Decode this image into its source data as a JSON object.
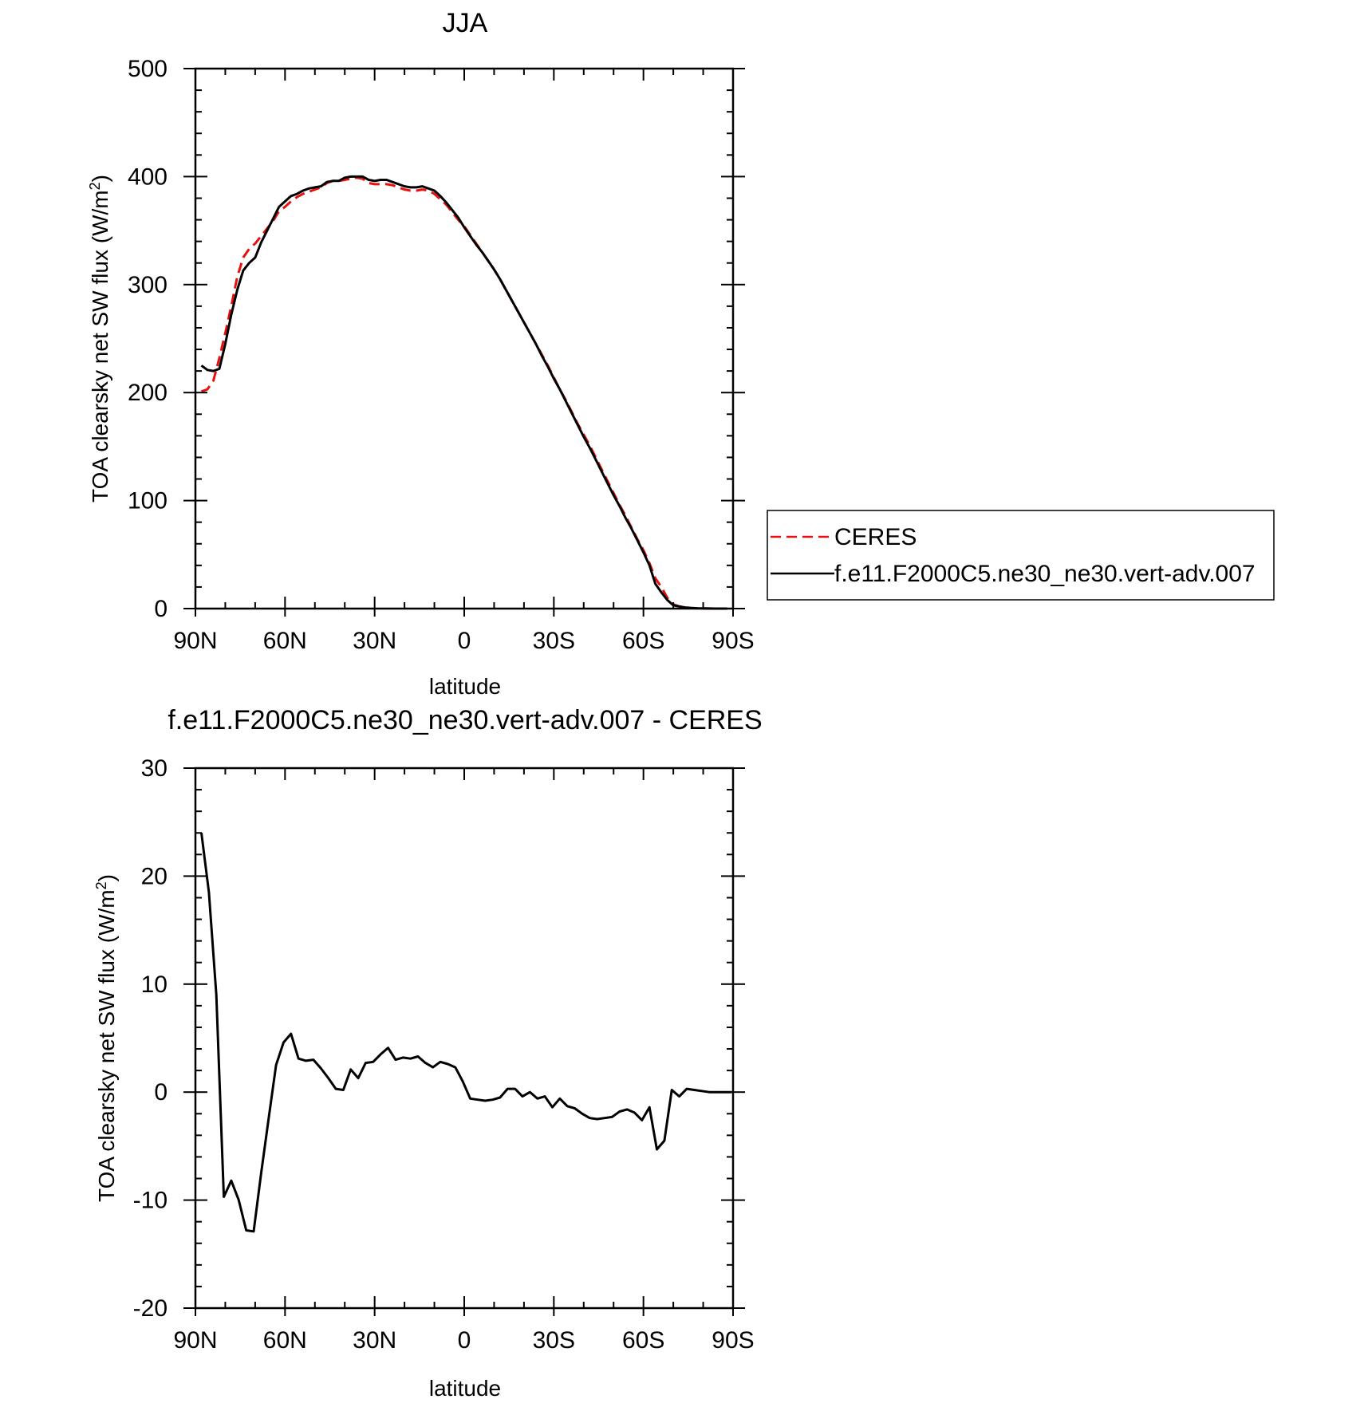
{
  "chart_data": [
    {
      "type": "line",
      "title": "JJA",
      "xlabel": "latitude",
      "ylabel": "TOA clearsky net SW flux (W/m²)",
      "ylabel_main": "TOA clearsky net SW flux (W/m",
      "ylabel_sup": "2",
      "ylabel_tail": ")",
      "xlim": [
        90,
        -90
      ],
      "ylim": [
        0,
        500
      ],
      "xticks": [
        {
          "value": 90,
          "label": "90N"
        },
        {
          "value": 60,
          "label": "60N"
        },
        {
          "value": 30,
          "label": "30N"
        },
        {
          "value": 0,
          "label": "0"
        },
        {
          "value": -30,
          "label": "30S"
        },
        {
          "value": -60,
          "label": "60S"
        },
        {
          "value": -90,
          "label": "90S"
        }
      ],
      "yticks": [
        {
          "value": 0,
          "label": "0"
        },
        {
          "value": 100,
          "label": "100"
        },
        {
          "value": 200,
          "label": "200"
        },
        {
          "value": 300,
          "label": "300"
        },
        {
          "value": 400,
          "label": "400"
        },
        {
          "value": 500,
          "label": "500"
        }
      ],
      "legend_position": "right",
      "series": [
        {
          "name": "CERES",
          "color": "#e8100f",
          "dash": true,
          "x": [
            88,
            86,
            84,
            82,
            80,
            78,
            76,
            74,
            72,
            70,
            68,
            66,
            64,
            62,
            60,
            58,
            56,
            54,
            52,
            50,
            48,
            46,
            44,
            42,
            40,
            38,
            36,
            34,
            32,
            30,
            28,
            26,
            24,
            22,
            20,
            18,
            16,
            14,
            12,
            10,
            8,
            6,
            4,
            2,
            0,
            -2,
            -4,
            -6,
            -8,
            -10,
            -12,
            -14,
            -16,
            -18,
            -20,
            -22,
            -24,
            -26,
            -28,
            -30,
            -32,
            -34,
            -36,
            -38,
            -40,
            -42,
            -44,
            -46,
            -48,
            -50,
            -52,
            -54,
            -56,
            -58,
            -60,
            -62,
            -64,
            -66,
            -68,
            -70,
            -72,
            -74,
            -76,
            -78,
            -80,
            -82,
            -84,
            -86,
            -88
          ],
          "values": [
            201,
            203,
            211,
            232,
            255,
            280,
            307,
            325,
            333,
            338,
            345,
            352,
            359,
            368,
            372,
            377,
            381,
            384,
            386,
            388,
            390,
            394,
            396,
            396,
            397,
            398,
            399,
            398,
            394,
            393,
            393,
            393,
            392,
            390,
            388,
            387,
            387,
            388,
            387,
            384,
            379,
            374,
            367,
            360,
            354,
            346,
            338,
            330,
            322,
            314,
            305,
            295,
            285,
            275,
            265,
            255,
            245,
            235,
            225,
            214,
            203,
            193,
            182,
            171,
            161,
            151,
            140,
            129,
            118,
            107,
            96,
            86,
            75,
            64,
            54,
            42,
            28,
            20,
            10,
            4,
            2,
            1,
            0.5,
            0.3,
            0.2,
            0.1,
            0,
            0,
            0
          ]
        },
        {
          "name": "f.e11.F2000C5.ne30_ne30.vert-adv.007",
          "color": "#000000",
          "dash": false,
          "x": [
            88,
            86,
            84,
            82,
            80,
            78,
            76,
            74,
            72,
            70,
            68,
            66,
            64,
            62,
            60,
            58,
            56,
            54,
            52,
            50,
            48,
            46,
            44,
            42,
            40,
            38,
            36,
            34,
            32,
            30,
            28,
            26,
            24,
            22,
            20,
            18,
            16,
            14,
            12,
            10,
            8,
            6,
            4,
            2,
            0,
            -2,
            -4,
            -6,
            -8,
            -10,
            -12,
            -14,
            -16,
            -18,
            -20,
            -22,
            -24,
            -26,
            -28,
            -30,
            -32,
            -34,
            -36,
            -38,
            -40,
            -42,
            -44,
            -46,
            -48,
            -50,
            -52,
            -54,
            -56,
            -58,
            -60,
            -62,
            -64,
            -66,
            -68,
            -70,
            -72,
            -74,
            -76,
            -78,
            -80,
            -82,
            -84,
            -86,
            -88
          ],
          "values": [
            225,
            221,
            220,
            222,
            245,
            272,
            295,
            313,
            320,
            325,
            339,
            350,
            361,
            372,
            377,
            382,
            384,
            387,
            389,
            390,
            391,
            395,
            396,
            396,
            399,
            400,
            400,
            400,
            397,
            396,
            397,
            397,
            395,
            393,
            391,
            390,
            390,
            391,
            389,
            387,
            382,
            376,
            369,
            362,
            353,
            345,
            337,
            330,
            322,
            314,
            305,
            295,
            285,
            275,
            265,
            255,
            245,
            234,
            224,
            213,
            203,
            192,
            181,
            170,
            159,
            149,
            138,
            127,
            116,
            105,
            95,
            84,
            74,
            63,
            52,
            40,
            23,
            15,
            8,
            3,
            2,
            1,
            0.5,
            0.3,
            0.2,
            0.1,
            0,
            0,
            0
          ]
        }
      ]
    },
    {
      "type": "line",
      "title": "f.e11.F2000C5.ne30_ne30.vert-adv.007 - CERES",
      "xlabel": "latitude",
      "ylabel": "TOA clearsky net SW flux (W/m²)",
      "ylabel_main": "TOA clearsky net SW flux (W/m",
      "ylabel_sup": "2",
      "ylabel_tail": ")",
      "xlim": [
        90,
        -90
      ],
      "ylim": [
        -20,
        30
      ],
      "xticks": [
        {
          "value": 90,
          "label": "90N"
        },
        {
          "value": 60,
          "label": "60N"
        },
        {
          "value": 30,
          "label": "30N"
        },
        {
          "value": 0,
          "label": "0"
        },
        {
          "value": -30,
          "label": "30S"
        },
        {
          "value": -60,
          "label": "60S"
        },
        {
          "value": -90,
          "label": "90S"
        }
      ],
      "yticks": [
        {
          "value": -20,
          "label": "-20"
        },
        {
          "value": -10,
          "label": "-10"
        },
        {
          "value": 0,
          "label": "0"
        },
        {
          "value": 10,
          "label": "10"
        },
        {
          "value": 20,
          "label": "20"
        },
        {
          "value": 30,
          "label": "30"
        }
      ],
      "series": [
        {
          "color": "#000000",
          "dash": false,
          "x": [
            88,
            85.5,
            83,
            80.5,
            78,
            75.5,
            73,
            70.5,
            68,
            65.5,
            63,
            60.5,
            58,
            55.5,
            53,
            50.5,
            48,
            45.5,
            43,
            40.5,
            38,
            35.5,
            33,
            30.5,
            28,
            25.5,
            23,
            20.5,
            18,
            15.5,
            13,
            10.5,
            8,
            5.5,
            3,
            0.5,
            -2,
            -4.5,
            -7,
            -9.5,
            -12,
            -14.5,
            -17,
            -19.5,
            -22,
            -24.5,
            -27,
            -29.5,
            -32,
            -34.5,
            -37,
            -39.5,
            -42,
            -44.5,
            -47,
            -49.5,
            -52,
            -54.5,
            -57,
            -59.5,
            -62,
            -64.5,
            -67,
            -69.5,
            -72,
            -74.5,
            -77,
            -79.5,
            -82,
            -84.5,
            -87,
            -89.5
          ],
          "values": [
            24,
            18.5,
            9,
            -9.7,
            -8.2,
            -10,
            -12.8,
            -12.9,
            -7.5,
            -2.5,
            2.5,
            4.6,
            5.4,
            3.1,
            2.9,
            3,
            2.2,
            1.3,
            0.3,
            0.2,
            2.1,
            1.3,
            2.7,
            2.8,
            3.5,
            4.1,
            3,
            3.2,
            3.1,
            3.3,
            2.7,
            2.3,
            2.8,
            2.6,
            2.3,
            1,
            -0.6,
            -0.7,
            -0.8,
            -0.7,
            -0.5,
            0.3,
            0.3,
            -0.4,
            0,
            -0.6,
            -0.4,
            -1.4,
            -0.6,
            -1.3,
            -1.5,
            -2,
            -2.4,
            -2.5,
            -2.4,
            -2.3,
            -1.8,
            -1.6,
            -1.9,
            -2.6,
            -1.4,
            -5.3,
            -4.5,
            0.2,
            -0.4,
            0.3,
            0.2,
            0.1,
            0,
            0,
            0,
            0
          ]
        }
      ]
    }
  ]
}
